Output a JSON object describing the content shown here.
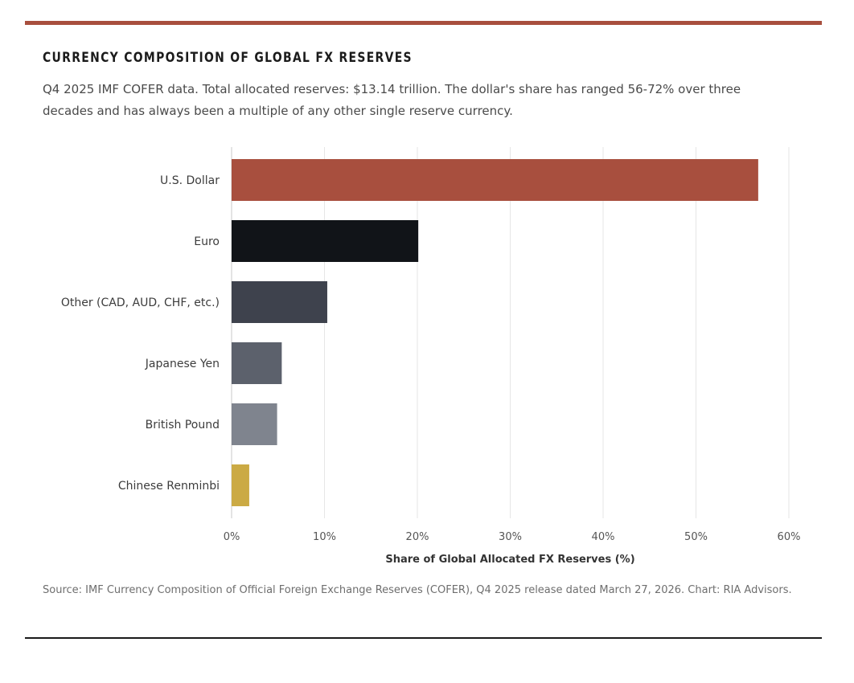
{
  "header": {
    "title": "CURRENCY COMPOSITION OF GLOBAL FX RESERVES",
    "subtitle": "Q4 2025 IMF COFER data. Total allocated reserves: $13.14 trillion. The dollar's share has ranged 56-72% over three decades and has always been a multiple of any other single reserve currency."
  },
  "footer": {
    "source": "Source: IMF Currency Composition of Official Foreign Exchange Reserves (COFER), Q4 2025 release dated March 27, 2026. Chart: RIA Advisors."
  },
  "chart_data": {
    "type": "bar",
    "orientation": "horizontal",
    "title": "CURRENCY COMPOSITION OF GLOBAL FX RESERVES",
    "xlabel": "Share of Global Allocated FX Reserves (%)",
    "ylabel": "",
    "categories": [
      "U.S. Dollar",
      "Euro",
      "Other (CAD, AUD, CHF, etc.)",
      "Japanese Yen",
      "British Pound",
      "Chinese Renminbi"
    ],
    "values": [
      56.7,
      20.1,
      10.3,
      5.4,
      4.9,
      1.9
    ],
    "colors": [
      "#A84F3E",
      "#111418",
      "#3E424D",
      "#5C616C",
      "#7F848E",
      "#CBAA44"
    ],
    "xlim": [
      0,
      60
    ],
    "xticks": [
      "0%",
      "10%",
      "20%",
      "30%",
      "40%",
      "50%",
      "60%"
    ],
    "grid": true,
    "legend": "none"
  }
}
